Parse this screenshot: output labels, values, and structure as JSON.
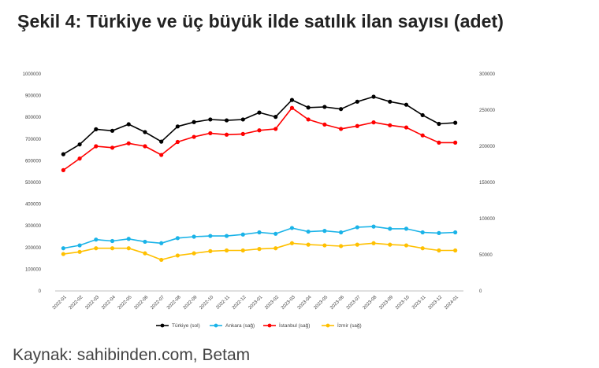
{
  "figure": {
    "title": "Şekil 4: Türkiye ve üç büyük ilde satılık ilan sayısı (adet)",
    "source": "Kaynak: sahibinden.com, Betam"
  },
  "chart_data": {
    "type": "line",
    "categories": [
      "2022-01",
      "2022-02",
      "2022-03",
      "2022-04",
      "2022-05",
      "2022-06",
      "2022-07",
      "2022-08",
      "2022-09",
      "2022-10",
      "2022-11",
      "2022-12",
      "2023-01",
      "2023-02",
      "2023-03",
      "2023-04",
      "2023-05",
      "2023-06",
      "2023-07",
      "2023-08",
      "2023-09",
      "2023-10",
      "2023-11",
      "2023-12",
      "2024-01"
    ],
    "ylim_left": [
      0,
      1000000
    ],
    "ylim_right": [
      0,
      300000
    ],
    "yticks_left": [
      "0",
      "100000",
      "200000",
      "300000",
      "400000",
      "500000",
      "600000",
      "700000",
      "800000",
      "900000",
      "1000000"
    ],
    "yticks_right": [
      "0",
      "50000",
      "100000",
      "150000",
      "200000",
      "250000",
      "300000"
    ],
    "legend_position": "bottom",
    "grid": false,
    "series": [
      {
        "name": "Türkiye (sol)",
        "axis": "left",
        "color": "#000000",
        "values": [
          630000,
          675000,
          745000,
          738000,
          768000,
          732000,
          688000,
          758000,
          778000,
          790000,
          786000,
          790000,
          822000,
          802000,
          880000,
          845000,
          848000,
          838000,
          872000,
          895000,
          872000,
          858000,
          810000,
          770000,
          775000
        ]
      },
      {
        "name": "Ankara (sağ)",
        "axis": "right",
        "color": "#1ab3e8",
        "values": [
          59000,
          63000,
          71000,
          69000,
          72000,
          68000,
          66000,
          73000,
          75000,
          76000,
          76000,
          78000,
          81000,
          79000,
          87000,
          82000,
          83000,
          81000,
          88000,
          89000,
          86000,
          86000,
          81000,
          80000,
          81000
        ]
      },
      {
        "name": "İstanbul (sağ)",
        "axis": "right",
        "color": "#ff0000",
        "values": [
          167000,
          183000,
          200000,
          198000,
          204000,
          200000,
          188000,
          206000,
          213000,
          218000,
          216000,
          217000,
          222000,
          224000,
          253000,
          237000,
          230000,
          224000,
          228000,
          233000,
          229000,
          226000,
          215000,
          205000,
          205000
        ]
      },
      {
        "name": "İzmir (sağ)",
        "axis": "right",
        "color": "#ffc000",
        "values": [
          51000,
          54000,
          59000,
          59000,
          59000,
          52000,
          43000,
          49000,
          52000,
          55000,
          56000,
          56000,
          58000,
          59000,
          66000,
          64000,
          63000,
          62000,
          64000,
          66000,
          64000,
          63000,
          59000,
          56000,
          56000
        ]
      }
    ]
  }
}
